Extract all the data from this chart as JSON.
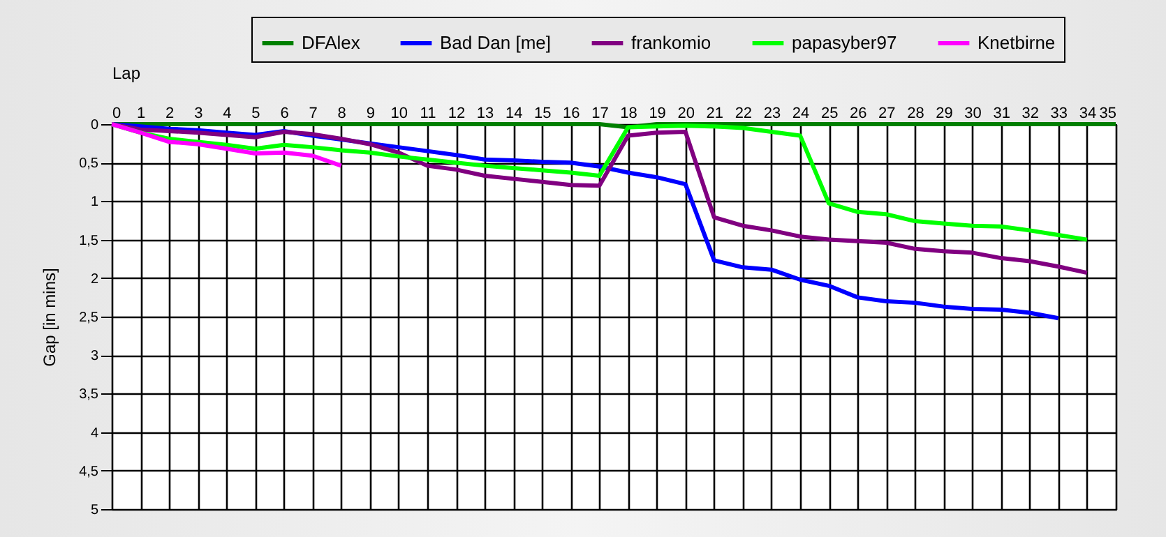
{
  "chart_data": {
    "type": "line",
    "xlabel": "Lap",
    "ylabel": "Gap [in mins]",
    "x": [
      0,
      1,
      2,
      3,
      4,
      5,
      6,
      7,
      8,
      9,
      10,
      11,
      12,
      13,
      14,
      15,
      16,
      17,
      18,
      19,
      20,
      21,
      22,
      23,
      24,
      25,
      26,
      27,
      28,
      29,
      30,
      31,
      32,
      33,
      34,
      35
    ],
    "series": [
      {
        "name": "DFAlex",
        "color": "#007f00",
        "values": [
          0,
          0,
          0,
          0,
          0,
          0,
          0,
          0,
          0,
          0,
          0,
          0,
          0,
          0,
          0,
          0,
          0,
          0,
          0.04,
          0,
          0,
          0,
          0,
          0,
          0,
          0,
          0,
          0,
          0,
          0,
          0,
          0,
          0,
          0,
          0,
          0
        ]
      },
      {
        "name": "Bad Dan [me]",
        "color": "#0000ff",
        "values": [
          0,
          0.03,
          0.06,
          0.08,
          0.11,
          0.14,
          0.09,
          0.15,
          0.2,
          0.25,
          0.3,
          0.35,
          0.4,
          0.46,
          0.47,
          0.49,
          0.5,
          0.55,
          0.63,
          0.69,
          0.78,
          1.77,
          1.86,
          1.89,
          2.02,
          2.1,
          2.25,
          2.3,
          2.32,
          2.37,
          2.4,
          2.41,
          2.45,
          2.52,
          null,
          null
        ]
      },
      {
        "name": "frankomio",
        "color": "#800080",
        "values": [
          0,
          0.07,
          0.09,
          0.11,
          0.14,
          0.17,
          0.1,
          0.13,
          0.19,
          0.26,
          0.37,
          0.54,
          0.59,
          0.67,
          0.71,
          0.75,
          0.79,
          0.8,
          0.15,
          0.11,
          0.1,
          1.21,
          1.32,
          1.38,
          1.46,
          1.5,
          1.52,
          1.54,
          1.62,
          1.65,
          1.67,
          1.74,
          1.78,
          1.85,
          1.93,
          null
        ]
      },
      {
        "name": "papasyber97",
        "color": "#00ff00",
        "values": [
          0,
          0.11,
          0.19,
          0.23,
          0.27,
          0.32,
          0.27,
          0.3,
          0.34,
          0.37,
          0.42,
          0.46,
          0.5,
          0.54,
          0.57,
          0.6,
          0.63,
          0.67,
          0.04,
          0.03,
          0.02,
          0.03,
          0.05,
          0.1,
          0.15,
          1.03,
          1.14,
          1.17,
          1.26,
          1.29,
          1.32,
          1.33,
          1.38,
          1.44,
          1.5,
          null
        ]
      },
      {
        "name": "Knetbirne",
        "color": "#ff00ff",
        "values": [
          0,
          0.11,
          0.23,
          0.26,
          0.32,
          0.38,
          0.37,
          0.41,
          0.54,
          null,
          null,
          null,
          null,
          null,
          null,
          null,
          null,
          null,
          null,
          null,
          null,
          null,
          null,
          null,
          null,
          null,
          null,
          null,
          null,
          null,
          null,
          null,
          null,
          null,
          null,
          null
        ]
      }
    ],
    "xlim": [
      0,
      35
    ],
    "xticks": [
      0,
      1,
      2,
      3,
      4,
      5,
      6,
      7,
      8,
      9,
      10,
      11,
      12,
      13,
      14,
      15,
      16,
      17,
      18,
      19,
      20,
      21,
      22,
      23,
      24,
      25,
      26,
      27,
      28,
      29,
      30,
      31,
      32,
      33,
      34,
      35
    ],
    "ylim": [
      5,
      0
    ],
    "yticks": [
      0,
      {
        "value": 0.5,
        "label": "0,5"
      },
      1,
      {
        "value": 1.5,
        "label": "1,5"
      },
      2,
      {
        "value": 2.5,
        "label": "2,5"
      },
      3,
      {
        "value": 3.5,
        "label": "3,5"
      },
      4,
      {
        "value": 4.5,
        "label": "4,5"
      },
      5
    ],
    "grid": true,
    "legend": "top",
    "marker": "none",
    "line_style": "solid"
  }
}
